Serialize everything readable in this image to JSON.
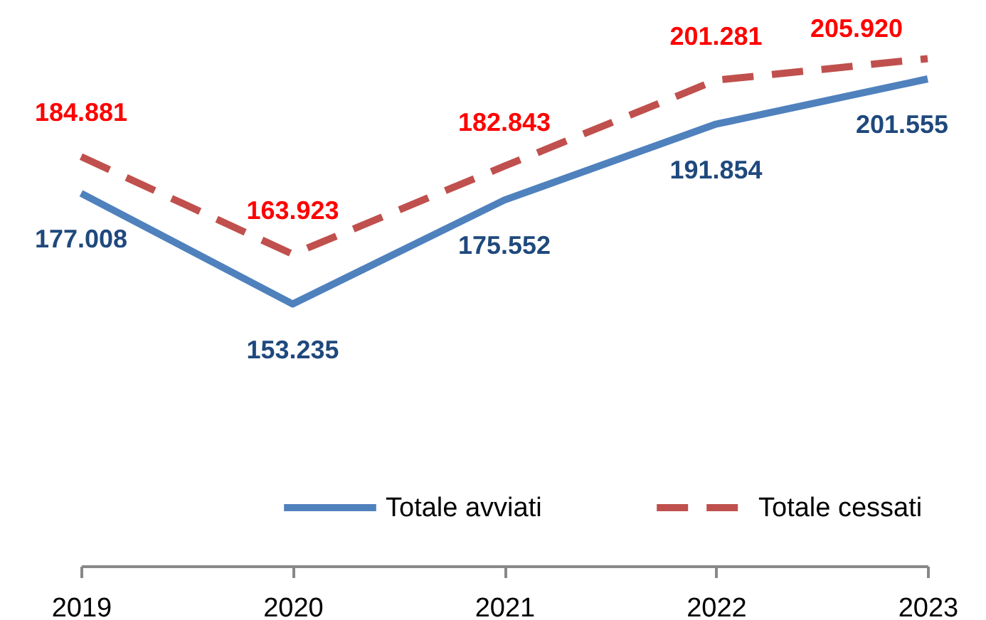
{
  "chart_data": {
    "type": "line",
    "categories": [
      "2019",
      "2020",
      "2021",
      "2022",
      "2023"
    ],
    "ylim": [
      97000,
      218500
    ],
    "legend": "bottom",
    "marker": "none",
    "series": [
      {
        "name": "Totale avviati",
        "color": "#4f81bd",
        "line_style": "solid",
        "values": [
          177008,
          153235,
          175552,
          191854,
          201555
        ],
        "value_labels": [
          "177.008",
          "153.235",
          "175.552",
          "191.854",
          "201.555"
        ]
      },
      {
        "name": "Totale cessati",
        "color": "#c0504d",
        "line_style": "dashed",
        "values": [
          184881,
          163923,
          182843,
          201281,
          205920
        ],
        "value_labels": [
          "184.881",
          "163.923",
          "182.843",
          "201.281",
          "205.920"
        ]
      }
    ]
  }
}
